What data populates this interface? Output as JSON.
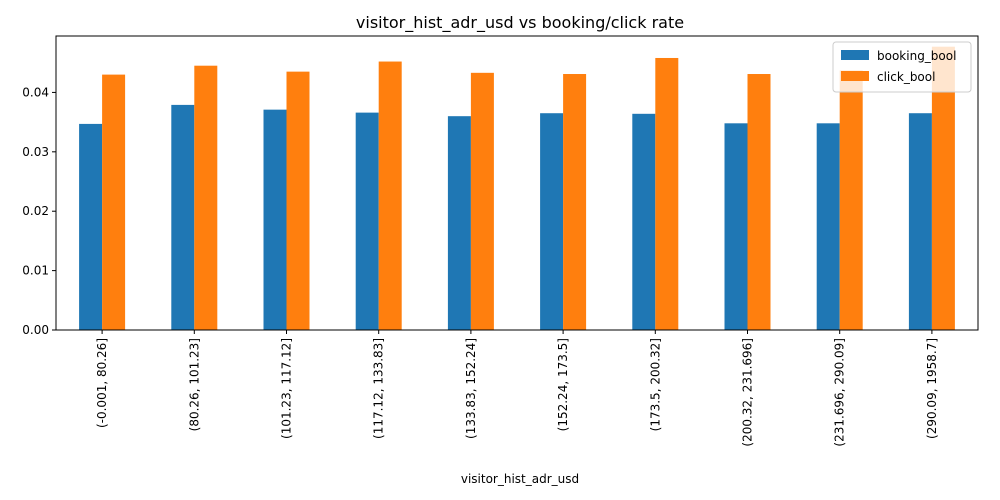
{
  "chart_data": {
    "type": "bar",
    "title": "visitor_hist_adr_usd vs booking/click rate",
    "xlabel": "visitor_hist_adr_usd",
    "ylabel": "",
    "ylim": [
      0,
      0.0495
    ],
    "yticks": [
      "0.00",
      "0.01",
      "0.02",
      "0.03",
      "0.04"
    ],
    "ytick_values": [
      0,
      0.01,
      0.02,
      0.03,
      0.04
    ],
    "categories": [
      "(-0.001, 80.26]",
      "(80.26, 101.23]",
      "(101.23, 117.12]",
      "(117.12, 133.83]",
      "(133.83, 152.24]",
      "(152.24, 173.5]",
      "(173.5, 200.32]",
      "(200.32, 231.696]",
      "(231.696, 290.09]",
      "(290.09, 1958.7]"
    ],
    "series": [
      {
        "name": "booking_bool",
        "color": "#1f77b4",
        "values": [
          0.0347,
          0.0379,
          0.0371,
          0.0366,
          0.036,
          0.0365,
          0.0364,
          0.0348,
          0.0348,
          0.0365
        ]
      },
      {
        "name": "click_bool",
        "color": "#ff7f0e",
        "values": [
          0.043,
          0.0445,
          0.0435,
          0.0452,
          0.0433,
          0.0431,
          0.0458,
          0.0431,
          0.0437,
          0.0477
        ]
      }
    ],
    "legend_position": "top-right",
    "grid": false
  }
}
